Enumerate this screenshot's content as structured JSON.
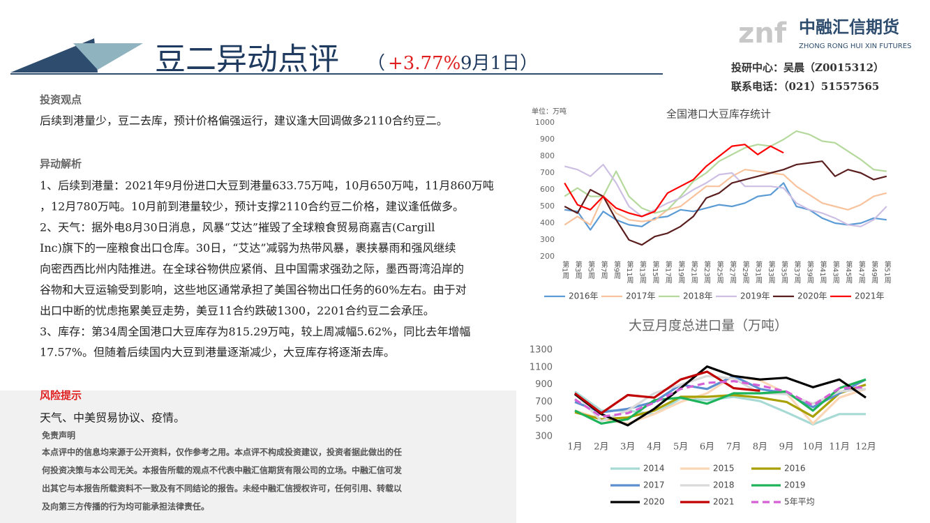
{
  "header": {
    "title": "豆二异动点评",
    "title_open": "（",
    "title_change": "+3.77%",
    "title_date": " 9月1日）",
    "logo_mark": "znf",
    "logo_name": "中融汇信期货",
    "logo_en": "ZHONG RONG HUI XIN FUTURES",
    "contact": [
      "投研中心：吴晨（Z0015312）",
      "联系电话：（021）51557565"
    ]
  },
  "view": {
    "heading": "投资观点",
    "text": "后续到港量少，豆二去库，预计价格偏强运行，建议逢大回调做多2110合约豆二。"
  },
  "analysis": {
    "heading": "异动解析",
    "lines": [
      "1、后续到港量：2021年9月份进口大豆到港量633.75万吨，10月650万吨，11月860万吨",
      "，12月780万吨。10月前到港量较少，预计支撑2110合约豆二价格，建议逢低做多。",
      "2、天气：据外电8月30日消息，风暴“艾达”摧毁了全球粮食贸易商嘉吉(Cargill",
      "Inc)旗下的一座粮食出口仓库。30日，“艾达”减弱为热带风暴，裹挟暴雨和强风继续",
      "向密西西比州内陆推进。在全球谷物供应紧俏、且中国需求强劲之际，墨西哥湾沿岸的",
      "谷物和大豆运输受到影响，这些地区通常承担了美国谷物出口任务的60%左右。由于对",
      "出口中断的忧虑拖累美豆走势，美豆11合约跌破1300，2201合约豆二会承压。",
      "3、库存：第34周全国港口大豆库存为815.29万吨，较上周减幅5.62%，同比去年增幅",
      "17.57%。但随着后续国内大豆到港量逐渐减少，大豆库存将逐渐去库。"
    ]
  },
  "risk": {
    "heading": "风险提示",
    "text": "天气、中美贸易协议、疫情。"
  },
  "disclaimer": {
    "heading": "免责声明",
    "lines": [
      "本点评中的信息均来源于公开资料，仅作参考之用。本点评不构成投资建议，投资者据此做出的任",
      "何投资决策与本公司无关。本报告所载的观点不代表中融汇信期货有限公司的立场。中融汇信可发",
      "出其它与本报告所载资料不一致及有不同结论的报告。未经中融汇信授权许可，任何引用、转载以",
      "及向第三方传播的行为均可能承担法律责任。"
    ]
  },
  "chart_data": [
    {
      "type": "line",
      "title": "全国港口大豆库存统计",
      "unit": "单位：万吨",
      "categories": [
        "第1周",
        "第3周",
        "第5周",
        "第7周",
        "第9周",
        "第11周",
        "第13周",
        "第15周",
        "第17周",
        "第19周",
        "第21周",
        "第23周",
        "第25周",
        "第27周",
        "第29周",
        "第31周",
        "第33周",
        "第35周",
        "第37周",
        "第39周",
        "第41周",
        "第43周",
        "第45周",
        "第47周",
        "第49周",
        "第51周"
      ],
      "ylim": [
        200,
        1000
      ],
      "yticks": [
        200,
        300,
        400,
        500,
        600,
        700,
        800,
        900,
        1000
      ],
      "grid": false,
      "series": [
        {
          "name": "2016年",
          "color": "#5b9bd5",
          "values": [
            480,
            470,
            360,
            470,
            420,
            390,
            380,
            430,
            440,
            480,
            470,
            490,
            510,
            500,
            520,
            560,
            570,
            640,
            500,
            480,
            430,
            400,
            390,
            400,
            430,
            420
          ]
        },
        {
          "name": "2017年",
          "color": "#f8c29c",
          "values": [
            390,
            440,
            390,
            560,
            460,
            420,
            410,
            420,
            480,
            500,
            560,
            620,
            620,
            680,
            720,
            710,
            700,
            690,
            620,
            570,
            520,
            500,
            480,
            510,
            560,
            580
          ]
        },
        {
          "name": "2018年",
          "color": "#b5d99c",
          "values": [
            560,
            610,
            560,
            560,
            710,
            560,
            490,
            460,
            480,
            560,
            650,
            700,
            770,
            810,
            850,
            870,
            860,
            900,
            950,
            930,
            890,
            880,
            830,
            780,
            720,
            710
          ]
        },
        {
          "name": "2019年",
          "color": "#cdbfe3",
          "values": [
            740,
            720,
            680,
            750,
            640,
            500,
            440,
            480,
            520,
            550,
            600,
            640,
            690,
            700,
            620,
            620,
            620,
            610,
            520,
            480,
            460,
            430,
            390,
            380,
            420,
            500
          ]
        },
        {
          "name": "2020年",
          "color": "#5a1e1e",
          "values": [
            500,
            460,
            600,
            560,
            420,
            300,
            270,
            320,
            340,
            380,
            440,
            550,
            580,
            640,
            660,
            680,
            700,
            720,
            750,
            760,
            770,
            680,
            720,
            700,
            660,
            680
          ]
        },
        {
          "name": "2021年",
          "color": "#ff0000",
          "values": [
            640,
            510,
            480,
            560,
            490,
            460,
            440,
            470,
            580,
            620,
            660,
            740,
            800,
            860,
            870,
            810,
            860,
            820,
            null,
            null,
            null,
            null,
            null,
            null,
            null,
            null
          ]
        }
      ]
    },
    {
      "type": "line",
      "title": "大豆月度总进口量（万吨）",
      "categories": [
        "1月",
        "2月",
        "3月",
        "4月",
        "5月",
        "6月",
        "7月",
        "8月",
        "9月",
        "10月",
        "11月",
        "12月"
      ],
      "ylim": [
        300,
        1300
      ],
      "yticks": [
        300,
        500,
        700,
        900,
        1100,
        1300
      ],
      "grid": false,
      "series": [
        {
          "name": "2014",
          "color": "#a7dad5",
          "values": [
            820,
            600,
            600,
            560,
            740,
            720,
            760,
            710,
            580,
            440,
            560,
            560
          ]
        },
        {
          "name": "2015",
          "color": "#fbd7b8",
          "values": [
            600,
            500,
            450,
            560,
            700,
            800,
            1000,
            950,
            800,
            450,
            750,
            850
          ]
        },
        {
          "name": "2016",
          "color": "#a89f00",
          "values": [
            580,
            500,
            520,
            600,
            760,
            760,
            780,
            750,
            700,
            530,
            800,
            900
          ]
        },
        {
          "name": "2017",
          "color": "#5b8fd0",
          "values": [
            700,
            580,
            620,
            700,
            900,
            850,
            1000,
            850,
            800,
            640,
            800,
            960
          ]
        },
        {
          "name": "2018",
          "color": "#d9d9d9",
          "values": [
            800,
            480,
            600,
            800,
            900,
            1000,
            970,
            800,
            790,
            680,
            820,
            850
          ]
        },
        {
          "name": "2019",
          "color": "#1db35a",
          "values": [
            600,
            450,
            500,
            720,
            750,
            680,
            800,
            800,
            820,
            600,
            860,
            960
          ]
        },
        {
          "name": "2020",
          "color": "#000000",
          "values": [
            790,
            560,
            430,
            620,
            860,
            1110,
            1000,
            960,
            980,
            870,
            960,
            750
          ]
        },
        {
          "name": "2021",
          "color": "#c00000",
          "values": [
            800,
            570,
            780,
            750,
            960,
            1050,
            860,
            830,
            null,
            null,
            null,
            null
          ]
        },
        {
          "name": "5年平均",
          "color": "#d55fd5",
          "dash": true,
          "values": [
            730,
            530,
            570,
            690,
            850,
            920,
            940,
            890,
            820,
            660,
            860,
            870
          ]
        }
      ]
    }
  ]
}
